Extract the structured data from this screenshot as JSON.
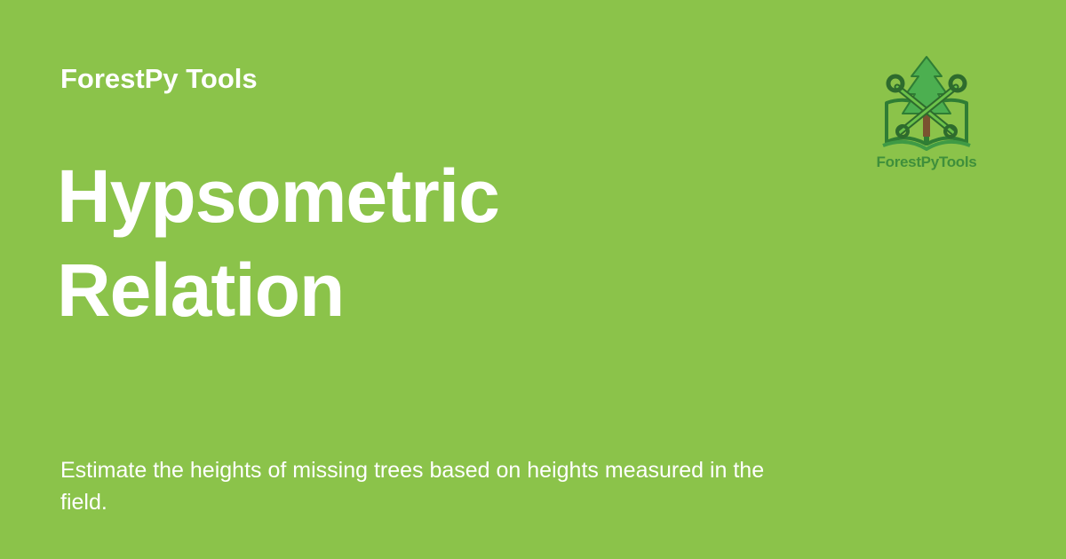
{
  "header": {
    "site_name": "ForestPy Tools"
  },
  "main": {
    "title_line1": "Hypsometric",
    "title_line2": "Relation",
    "description": "Estimate the heights of missing trees based on heights measured in the field."
  },
  "logo": {
    "text": "ForestPyTools",
    "icon_name": "forest-tools-logo-icon",
    "colors": {
      "tree": "#3f9a45",
      "book": "#2f7d34",
      "tools": "#2e6b2d",
      "trunk": "#7a5230"
    }
  },
  "colors": {
    "background": "#8bc34a",
    "text": "#ffffff",
    "logo_text": "#3f8f3b"
  }
}
